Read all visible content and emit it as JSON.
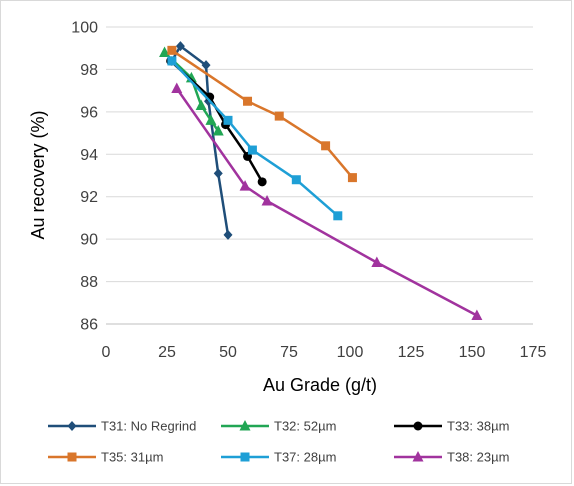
{
  "chart_data": {
    "type": "line",
    "xlabel": "Au Grade (g/t)",
    "ylabel": "Au recovery (%)",
    "xlim": [
      0,
      175
    ],
    "ylim": [
      86,
      100
    ],
    "xticks": [
      "0",
      "25",
      "50",
      "75",
      "100",
      "125",
      "150",
      "175"
    ],
    "yticks": [
      "86",
      "88",
      "90",
      "92",
      "94",
      "96",
      "98",
      "100"
    ],
    "grid": "horizontal",
    "legend_position": "bottom",
    "series": [
      {
        "name": "T31: No Regrind",
        "color": "#1f4e79",
        "marker": "diamond",
        "points": [
          [
            27,
            98.4
          ],
          [
            30.5,
            99.1
          ],
          [
            41,
            98.2
          ],
          [
            42,
            96.5
          ],
          [
            46,
            93.1
          ],
          [
            50,
            90.2
          ]
        ]
      },
      {
        "name": "T32: 52µm",
        "color": "#21a654",
        "marker": "triangle",
        "points": [
          [
            24,
            98.8
          ],
          [
            35,
            97.6
          ],
          [
            39,
            96.3
          ],
          [
            43,
            95.6
          ],
          [
            46,
            95.1
          ]
        ]
      },
      {
        "name": "T33: 38µm",
        "color": "#000000",
        "marker": "circle",
        "points": [
          [
            26.5,
            98.4
          ],
          [
            42.5,
            96.7
          ],
          [
            49,
            95.4
          ],
          [
            58,
            93.9
          ],
          [
            64,
            92.7
          ]
        ]
      },
      {
        "name": "T35: 31µm",
        "color": "#d9762b",
        "marker": "square",
        "points": [
          [
            27,
            98.9
          ],
          [
            58,
            96.5
          ],
          [
            71,
            95.8
          ],
          [
            90,
            94.4
          ],
          [
            101,
            92.9
          ]
        ]
      },
      {
        "name": "T37: 28µm",
        "color": "#1e9fd6",
        "marker": "square",
        "points": [
          [
            27,
            98.4
          ],
          [
            50,
            95.6
          ],
          [
            60,
            94.2
          ],
          [
            78,
            92.8
          ],
          [
            95,
            91.1
          ]
        ]
      },
      {
        "name": "T38: 23µm",
        "color": "#a1339e",
        "marker": "triangle",
        "points": [
          [
            29,
            97.1
          ],
          [
            57,
            92.5
          ],
          [
            66,
            91.8
          ],
          [
            111,
            88.9
          ],
          [
            152,
            86.4
          ]
        ]
      }
    ]
  }
}
